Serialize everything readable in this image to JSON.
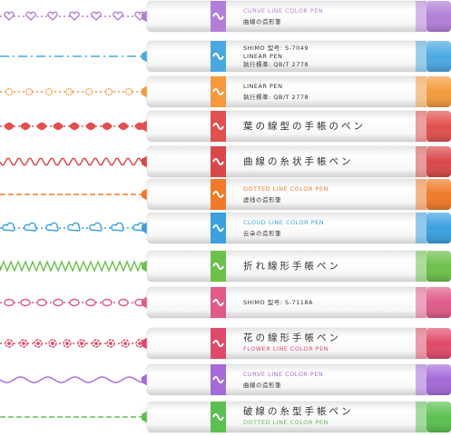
{
  "pens": [
    {
      "texts": [
        "CURVE LINE COLOR PEN",
        "曲線の造形筆"
      ]
    },
    {
      "texts": [
        "SHIMO 型号: S-7049",
        "LINEAR PEN",
        "執行標準: QB/T 2778"
      ]
    },
    {
      "texts": [
        "LINEAR PEN",
        "執行標準: QB/T 2778"
      ]
    },
    {
      "texts": [
        "葉の線型の手帳のペン"
      ]
    },
    {
      "texts": [
        "曲線の糸状手帳ペン"
      ]
    },
    {
      "texts": [
        "DOTTED LINE COLOR PEN",
        "虚线の造形筆"
      ]
    },
    {
      "texts": [
        "CLOUD LINE COLOR PEN",
        "云朵の造形筆"
      ]
    },
    {
      "texts": [
        "折れ線形手帳ペン"
      ]
    },
    {
      "texts": [
        "SHIMO 型号: S-7118A"
      ]
    },
    {
      "texts": [
        "花の線形手帳ペン",
        "FLOWER LINE COLOR PEN"
      ]
    },
    {
      "texts": [
        "CURVE LINE COLOR PEN",
        "曲線の造形筆"
      ]
    },
    {
      "texts": [
        "破線の糸型手帳ペン",
        "DOTTED LINE COLOR PEN"
      ]
    }
  ]
}
